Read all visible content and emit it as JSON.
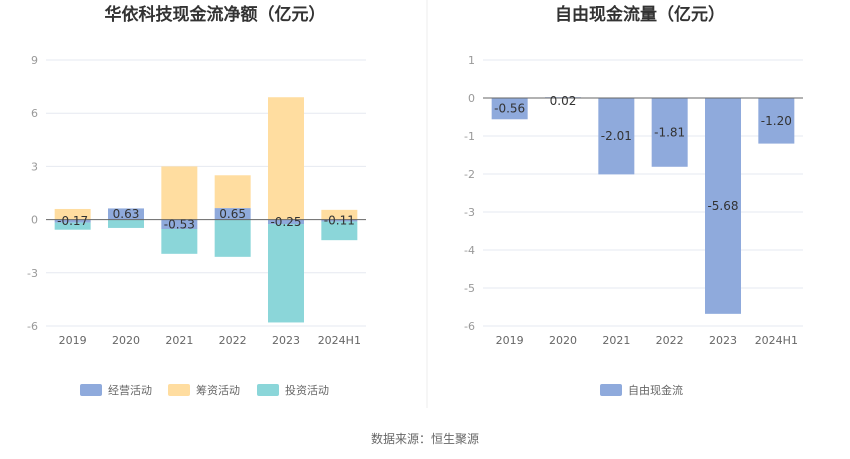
{
  "source": "数据来源：恒生聚源",
  "colors": {
    "operating": "#8FAADC",
    "financing": "#FFDDA0",
    "investing": "#8BD6D9",
    "free": "#8FAADC",
    "grid": "#E6E9F0",
    "zero": "#666666"
  },
  "chart_data": [
    {
      "type": "bar",
      "stacked": true,
      "title": "华依科技现金流净额（亿元）",
      "categories": [
        "2019",
        "2020",
        "2021",
        "2022",
        "2023",
        "2024H1"
      ],
      "ylim": [
        -6,
        9
      ],
      "yticks": [
        -6,
        -3,
        0,
        3,
        6,
        9
      ],
      "grid": true,
      "legend_position": "bottom",
      "label_series": "经营活动",
      "series": [
        {
          "name": "经营活动",
          "values": [
            -0.17,
            0.63,
            -0.53,
            0.65,
            -0.25,
            -0.11
          ]
        },
        {
          "name": "筹资活动",
          "values": [
            0.6,
            -0.02,
            3.0,
            1.85,
            6.9,
            0.55
          ]
        },
        {
          "name": "投资活动",
          "values": [
            -0.4,
            -0.45,
            -1.4,
            -2.1,
            -5.55,
            -1.05
          ]
        }
      ]
    },
    {
      "type": "bar",
      "title": "自由现金流量（亿元）",
      "categories": [
        "2019",
        "2020",
        "2021",
        "2022",
        "2023",
        "2024H1"
      ],
      "ylim": [
        -6,
        1
      ],
      "yticks": [
        -6,
        -5,
        -4,
        -3,
        -2,
        -1,
        0,
        1
      ],
      "grid": true,
      "legend_position": "bottom",
      "label_series": "自由现金流",
      "series": [
        {
          "name": "自由现金流",
          "values": [
            -0.56,
            0.02,
            -2.01,
            -1.81,
            -5.68,
            -1.2
          ]
        }
      ]
    }
  ]
}
